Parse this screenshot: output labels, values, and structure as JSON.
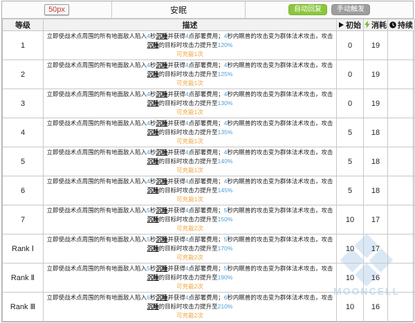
{
  "header": {
    "image_placeholder": "50px",
    "skill_name": "安眠",
    "badges": [
      {
        "label": "自动回复",
        "color": "#8cc63e"
      },
      {
        "label": "手动触发",
        "color": "#9e9e9e"
      }
    ]
  },
  "columns": {
    "level": "等级",
    "description": "描述",
    "initial": "初始",
    "cost": "消耗",
    "duration": "持续"
  },
  "icons": {
    "initial": "play-icon",
    "cost": "lightning-icon",
    "duration": "clock-icon",
    "lightning_color": "#7cb82f"
  },
  "accent_colors": {
    "value_blue": "#4a9ed9",
    "charge_orange": "#f2a33c"
  },
  "watermark": {
    "text": "MOONCELL"
  },
  "rows": [
    {
      "level": "1",
      "desc": [
        {
          "t": "立即使战术点周围的所有地面敌人陷入",
          "s": "plain"
        },
        {
          "t": "4",
          "s": "value"
        },
        {
          "t": "秒",
          "s": "plain"
        },
        {
          "t": "沉睡",
          "s": "keyword"
        },
        {
          "t": "并获得",
          "s": "plain"
        },
        {
          "t": "4",
          "s": "value"
        },
        {
          "t": "点部署费用；",
          "s": "plain"
        },
        {
          "t": "4",
          "s": "value"
        },
        {
          "t": "秒内眠兽的攻击变为群体法术攻击，攻击",
          "s": "plain"
        },
        {
          "t": "沉睡",
          "s": "keyword"
        },
        {
          "t": "的目标时攻击力提升至",
          "s": "plain"
        },
        {
          "t": "120%",
          "s": "value"
        }
      ],
      "charge": "可充能1次",
      "initial": "0",
      "cost": "19",
      "duration": ""
    },
    {
      "level": "2",
      "desc": [
        {
          "t": "立即使战术点周围的所有地面敌人陷入",
          "s": "plain"
        },
        {
          "t": "4",
          "s": "value"
        },
        {
          "t": "秒",
          "s": "plain"
        },
        {
          "t": "沉睡",
          "s": "keyword"
        },
        {
          "t": "并获得",
          "s": "plain"
        },
        {
          "t": "4",
          "s": "value"
        },
        {
          "t": "点部署费用；",
          "s": "plain"
        },
        {
          "t": "4",
          "s": "value"
        },
        {
          "t": "秒内眠兽的攻击变为群体法术攻击，攻击",
          "s": "plain"
        },
        {
          "t": "沉睡",
          "s": "keyword"
        },
        {
          "t": "的目标时攻击力提升至",
          "s": "plain"
        },
        {
          "t": "125%",
          "s": "value"
        }
      ],
      "charge": "可充能1次",
      "initial": "0",
      "cost": "19",
      "duration": ""
    },
    {
      "level": "3",
      "desc": [
        {
          "t": "立即使战术点周围的所有地面敌人陷入",
          "s": "plain"
        },
        {
          "t": "4",
          "s": "value"
        },
        {
          "t": "秒",
          "s": "plain"
        },
        {
          "t": "沉睡",
          "s": "keyword"
        },
        {
          "t": "并获得",
          "s": "plain"
        },
        {
          "t": "4",
          "s": "value"
        },
        {
          "t": "点部署费用；",
          "s": "plain"
        },
        {
          "t": "4",
          "s": "value"
        },
        {
          "t": "秒内眠兽的攻击变为群体法术攻击，攻击",
          "s": "plain"
        },
        {
          "t": "沉睡",
          "s": "keyword"
        },
        {
          "t": "的目标时攻击力提升至",
          "s": "plain"
        },
        {
          "t": "130%",
          "s": "value"
        }
      ],
      "charge": "可充能1次",
      "initial": "0",
      "cost": "19",
      "duration": ""
    },
    {
      "level": "4",
      "desc": [
        {
          "t": "立即使战术点周围的所有地面敌人陷入",
          "s": "plain"
        },
        {
          "t": "4",
          "s": "value"
        },
        {
          "t": "秒",
          "s": "plain"
        },
        {
          "t": "沉睡",
          "s": "keyword"
        },
        {
          "t": "并获得",
          "s": "plain"
        },
        {
          "t": "4",
          "s": "value"
        },
        {
          "t": "点部署费用；",
          "s": "plain"
        },
        {
          "t": "4",
          "s": "value"
        },
        {
          "t": "秒内眠兽的攻击变为群体法术攻击，攻击",
          "s": "plain"
        },
        {
          "t": "沉睡",
          "s": "keyword"
        },
        {
          "t": "的目标时攻击力提升至",
          "s": "plain"
        },
        {
          "t": "135%",
          "s": "value"
        }
      ],
      "charge": "可充能1次",
      "initial": "5",
      "cost": "18",
      "duration": ""
    },
    {
      "level": "5",
      "desc": [
        {
          "t": "立即使战术点周围的所有地面敌人陷入",
          "s": "plain"
        },
        {
          "t": "4",
          "s": "value"
        },
        {
          "t": "秒",
          "s": "plain"
        },
        {
          "t": "沉睡",
          "s": "keyword"
        },
        {
          "t": "并获得",
          "s": "plain"
        },
        {
          "t": "4",
          "s": "value"
        },
        {
          "t": "点部署费用；",
          "s": "plain"
        },
        {
          "t": "4",
          "s": "value"
        },
        {
          "t": "秒内眠兽的攻击变为群体法术攻击，攻击",
          "s": "plain"
        },
        {
          "t": "沉睡",
          "s": "keyword"
        },
        {
          "t": "的目标时攻击力提升至",
          "s": "plain"
        },
        {
          "t": "140%",
          "s": "value"
        }
      ],
      "charge": "可充能1次",
      "initial": "5",
      "cost": "18",
      "duration": ""
    },
    {
      "level": "6",
      "desc": [
        {
          "t": "立即使战术点周围的所有地面敌人陷入",
          "s": "plain"
        },
        {
          "t": "4",
          "s": "value"
        },
        {
          "t": "秒",
          "s": "plain"
        },
        {
          "t": "沉睡",
          "s": "keyword"
        },
        {
          "t": "并获得",
          "s": "plain"
        },
        {
          "t": "4",
          "s": "value"
        },
        {
          "t": "点部署费用；",
          "s": "plain"
        },
        {
          "t": "4",
          "s": "value"
        },
        {
          "t": "秒内眠兽的攻击变为群体法术攻击，攻击",
          "s": "plain"
        },
        {
          "t": "沉睡",
          "s": "keyword"
        },
        {
          "t": "的目标时攻击力提升至",
          "s": "plain"
        },
        {
          "t": "145%",
          "s": "value"
        }
      ],
      "charge": "可充能1次",
      "initial": "5",
      "cost": "18",
      "duration": ""
    },
    {
      "level": "7",
      "desc": [
        {
          "t": "立即使战术点周围的所有地面敌人陷入",
          "s": "plain"
        },
        {
          "t": "5",
          "s": "value"
        },
        {
          "t": "秒",
          "s": "plain"
        },
        {
          "t": "沉睡",
          "s": "keyword"
        },
        {
          "t": "并获得",
          "s": "plain"
        },
        {
          "t": "4",
          "s": "value"
        },
        {
          "t": "点部署费用；",
          "s": "plain"
        },
        {
          "t": "5",
          "s": "value"
        },
        {
          "t": "秒内眠兽的攻击变为群体法术攻击，攻击",
          "s": "plain"
        },
        {
          "t": "沉睡",
          "s": "keyword"
        },
        {
          "t": "的目标时攻击力提升至",
          "s": "plain"
        },
        {
          "t": "150%",
          "s": "value"
        }
      ],
      "charge": "可充能2次",
      "initial": "10",
      "cost": "17",
      "duration": ""
    },
    {
      "level": "Rank Ⅰ",
      "desc": [
        {
          "t": "立即使战术点周围的所有地面敌人陷入",
          "s": "plain"
        },
        {
          "t": "5",
          "s": "value"
        },
        {
          "t": "秒",
          "s": "plain"
        },
        {
          "t": "沉睡",
          "s": "keyword"
        },
        {
          "t": "并获得",
          "s": "plain"
        },
        {
          "t": "4",
          "s": "value"
        },
        {
          "t": "点部署费用；",
          "s": "plain"
        },
        {
          "t": "5",
          "s": "value"
        },
        {
          "t": "秒内眠兽的攻击变为群体法术攻击，攻击",
          "s": "plain"
        },
        {
          "t": "沉睡",
          "s": "keyword"
        },
        {
          "t": "的目标时攻击力提升至",
          "s": "plain"
        },
        {
          "t": "170%",
          "s": "value"
        }
      ],
      "charge": "可充能2次",
      "initial": "10",
      "cost": "17",
      "duration": ""
    },
    {
      "level": "Rank Ⅱ",
      "desc": [
        {
          "t": "立即使战术点周围的所有地面敌人陷入",
          "s": "plain"
        },
        {
          "t": "5",
          "s": "value"
        },
        {
          "t": "秒",
          "s": "plain"
        },
        {
          "t": "沉睡",
          "s": "keyword"
        },
        {
          "t": "并获得",
          "s": "plain"
        },
        {
          "t": "4",
          "s": "value"
        },
        {
          "t": "点部署费用；",
          "s": "plain"
        },
        {
          "t": "5",
          "s": "value"
        },
        {
          "t": "秒内眠兽的攻击变为群体法术攻击，攻击",
          "s": "plain"
        },
        {
          "t": "沉睡",
          "s": "keyword"
        },
        {
          "t": "的目标时攻击力提升至",
          "s": "plain"
        },
        {
          "t": "190%",
          "s": "value"
        }
      ],
      "charge": "可充能2次",
      "initial": "10",
      "cost": "16",
      "duration": ""
    },
    {
      "level": "Rank Ⅲ",
      "desc": [
        {
          "t": "立即使战术点周围的所有地面敌人陷入",
          "s": "plain"
        },
        {
          "t": "6",
          "s": "value"
        },
        {
          "t": "秒",
          "s": "plain"
        },
        {
          "t": "沉睡",
          "s": "keyword"
        },
        {
          "t": "并获得",
          "s": "plain"
        },
        {
          "t": "4",
          "s": "value"
        },
        {
          "t": "点部署费用；",
          "s": "plain"
        },
        {
          "t": "6",
          "s": "value"
        },
        {
          "t": "秒内眠兽的攻击变为群体法术攻击，攻击",
          "s": "plain"
        },
        {
          "t": "沉睡",
          "s": "keyword"
        },
        {
          "t": "的目标时攻击力提升至",
          "s": "plain"
        },
        {
          "t": "210%",
          "s": "value"
        }
      ],
      "charge": "可充能2次",
      "initial": "10",
      "cost": "16",
      "duration": ""
    }
  ]
}
